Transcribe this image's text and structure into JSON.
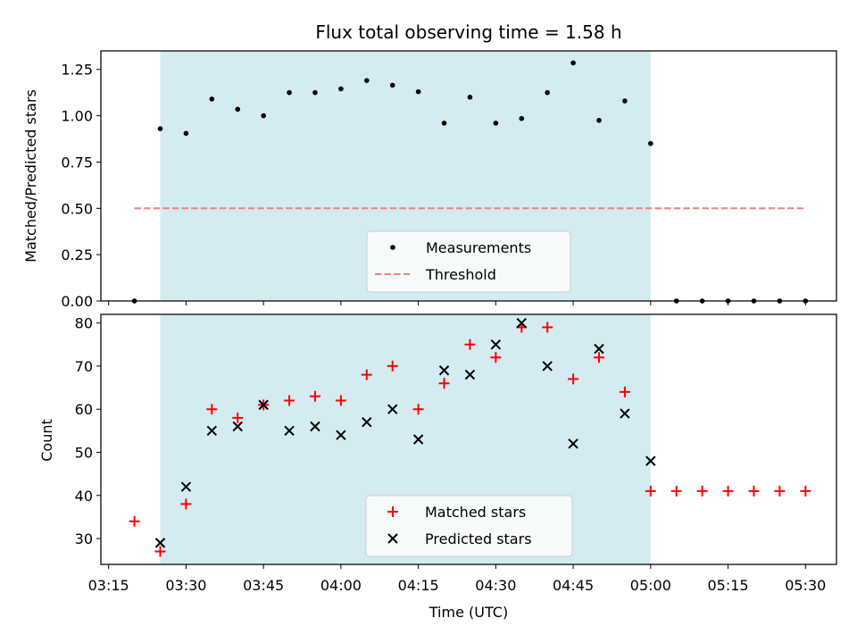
{
  "chart_data": [
    {
      "type": "scatter",
      "title": "Flux total observing time = 1.58 h",
      "xlabel": "",
      "ylabel": "Matched/Predicted stars",
      "ylim": [
        0,
        1.35
      ],
      "yticks": [
        0.0,
        0.25,
        0.5,
        0.75,
        1.0,
        1.25
      ],
      "ytick_labels": [
        "0.00",
        "0.25",
        "0.50",
        "0.75",
        "1.00",
        "1.25"
      ],
      "shaded_region": {
        "x_start_min": 205,
        "x_end_min": 300,
        "color": "#d4ebf1"
      },
      "legend": {
        "placement": "lower-center",
        "entries": [
          "Measurements",
          "Threshold"
        ]
      },
      "series": [
        {
          "name": "Measurements",
          "marker": "dot",
          "color": "#000000",
          "x_min": [
            200,
            205,
            210,
            215,
            220,
            225,
            230,
            235,
            240,
            245,
            250,
            255,
            260,
            265,
            270,
            275,
            280,
            285,
            290,
            295,
            300,
            305,
            310,
            315,
            320,
            325,
            330
          ],
          "values": [
            0.0,
            0.93,
            0.905,
            1.09,
            1.035,
            1.0,
            1.125,
            1.125,
            1.145,
            1.19,
            1.165,
            1.13,
            0.96,
            1.1,
            0.96,
            0.985,
            1.125,
            1.285,
            0.975,
            1.08,
            0.85,
            0.0,
            0.0,
            0.0,
            0.0,
            0.0,
            0.0
          ]
        },
        {
          "name": "Threshold",
          "style": "dashed",
          "color": "#f08080",
          "x_min": [
            200,
            330
          ],
          "values": [
            0.5,
            0.5
          ]
        }
      ]
    },
    {
      "type": "scatter",
      "title": "",
      "xlabel": "Time (UTC)",
      "ylabel": "Count",
      "ylim": [
        24,
        82
      ],
      "yticks": [
        30,
        40,
        50,
        60,
        70,
        80
      ],
      "ytick_labels": [
        "30",
        "40",
        "50",
        "60",
        "70",
        "80"
      ],
      "xlim_min": [
        193.5,
        336
      ],
      "xticks_min": [
        195,
        210,
        225,
        240,
        255,
        270,
        285,
        300,
        315,
        330
      ],
      "xtick_labels": [
        "03:15",
        "03:30",
        "03:45",
        "04:00",
        "04:15",
        "04:30",
        "04:45",
        "05:00",
        "05:15",
        "05:30"
      ],
      "shaded_region": {
        "x_start_min": 205,
        "x_end_min": 300,
        "color": "#d4ebf1"
      },
      "legend": {
        "placement": "lower-center",
        "entries": [
          "Matched stars",
          "Predicted stars"
        ]
      },
      "series": [
        {
          "name": "Matched stars",
          "marker": "plus",
          "color": "#ff0000",
          "x_min": [
            200,
            205,
            210,
            215,
            220,
            225,
            230,
            235,
            240,
            245,
            250,
            255,
            260,
            265,
            270,
            275,
            280,
            285,
            290,
            295,
            300,
            305,
            310,
            315,
            320,
            325,
            330
          ],
          "values": [
            34,
            27,
            38,
            60,
            58,
            61,
            62,
            63,
            62,
            68,
            70,
            60,
            66,
            75,
            72,
            79,
            79,
            67,
            72,
            64,
            41,
            41,
            41,
            41,
            41,
            41,
            41
          ]
        },
        {
          "name": "Predicted stars",
          "marker": "x",
          "color": "#000000",
          "x_min": [
            205,
            210,
            215,
            220,
            225,
            230,
            235,
            240,
            245,
            250,
            255,
            260,
            265,
            270,
            275,
            280,
            285,
            290,
            295,
            300
          ],
          "values": [
            29,
            42,
            55,
            56,
            61,
            55,
            56,
            54,
            57,
            60,
            53,
            69,
            68,
            75,
            80,
            70,
            52,
            74,
            59,
            48
          ]
        }
      ]
    }
  ]
}
